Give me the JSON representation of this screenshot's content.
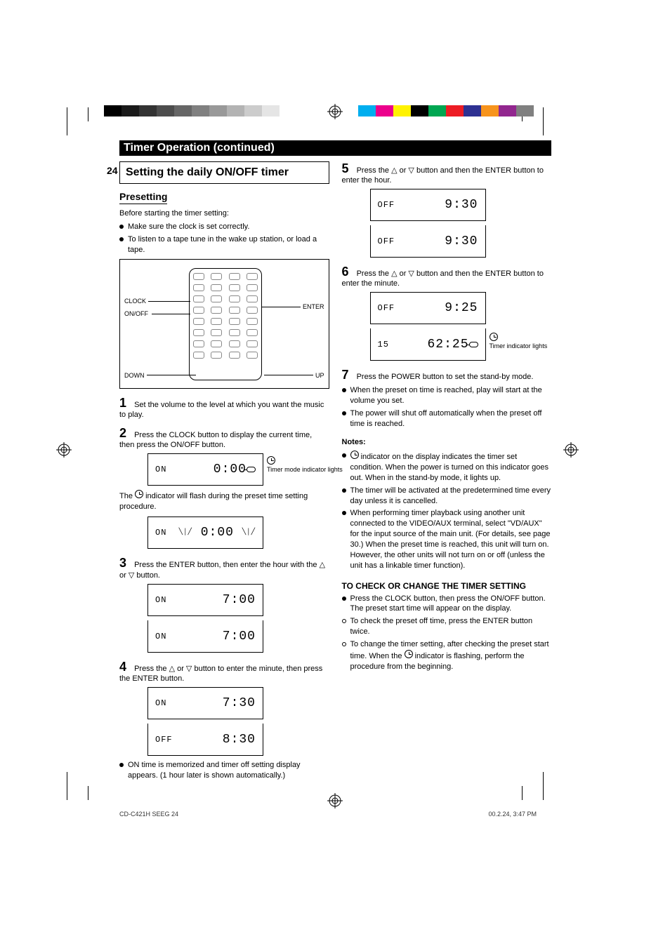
{
  "banner": "Timer Operation (continued)",
  "page_number": "24",
  "box_heading": "Setting the daily ON/OFF timer",
  "left": {
    "preset_head": "Presetting",
    "preset_p": "Before starting the timer setting:",
    "b1": "Make sure the clock is set correctly.",
    "b2": "To listen to a tape tune in the wake up station, or load a tape.",
    "fig_clock": "CLOCK",
    "fig_on": "ON/OFF",
    "fig_enter": "ENTER",
    "fig_dn": "DOWN",
    "fig_up": "UP",
    "s1": "Set the volume to the level at which you want the music to play.",
    "s2a": "Press the CLOCK button to display the current time, then press the ON/OFF button.",
    "lcd1_left": "ON",
    "lcd1_right": "0:00",
    "lcd1_note_a": "Timer mode indicator lights",
    "s2b_pfx": "The ",
    "s2b_icon_word": "clock",
    "s2b": " indicator will flash during the preset time setting procedure.",
    "lcd2_left": "ON",
    "lcd2_right": "0:00",
    "s3": "Press the ENTER button, then enter the hour with the △ or ▽ button.",
    "lcd3_left": "ON",
    "lcd3_right": "7:00",
    "lcd4_left": "ON",
    "lcd4_right": "7:00",
    "s4": "Press the △ or ▽ button to enter the minute, then press the ENTER button.",
    "lcd5_left": "ON",
    "lcd5_right": "7:30",
    "lcd6_left": "OFF",
    "lcd6_right": "8:30",
    "bnote": "ON time is memorized and timer off setting display appears. (1 hour later is shown automatically.)"
  },
  "right": {
    "s5": "Press the △ or ▽ button and then the ENTER button to enter the hour.",
    "lcd7_left": "OFF",
    "lcd7_right": "9:30",
    "lcd8_left": "OFF",
    "lcd8_right": "9:30",
    "s6": "Press the △ or ▽ button and then the ENTER button to enter the minute.",
    "lcd9_left": "OFF",
    "lcd9_right": "9:25",
    "lcd10_left": "15",
    "lcd10_right": "62:25",
    "lcd10_note": "Timer indicator lights",
    "s7": "Press the POWER button to set the stand-by mode.",
    "b7a": "When the preset on time is reached, play will start at the volume you set.",
    "b7b": "The power will shut off automatically when the preset off time is reached.",
    "notes_head": "Notes:",
    "n1_pre": "",
    "n1": " indicator on the display indicates the timer set condition. When the power is turned on this indicator goes out. When in the stand-by mode, it lights up.",
    "n2": "The timer will be activated at the predetermined time every day unless it is cancelled.",
    "n3": "When performing timer playback using another unit connected to the VIDEO/AUX terminal, select \"VD/AUX\" for the input source of the main unit. (For details, see page 30.) When the preset time is reached, this unit will turn on. However, the other units will not turn on or off (unless the unit has a linkable timer function).",
    "check_head": "TO CHECK OR CHANGE THE TIMER SETTING",
    "c1": "Press the CLOCK button, then press the ON/OFF button. The preset start time will appear on the display.",
    "c2": "To check the preset off time, press the ENTER button twice.",
    "c3_pre": "To change the timer setting, after checking the preset start time. When the ",
    "c3_post": " indicator is flashing, perform the procedure from the beginning."
  },
  "footer_file": "CD-C421H SEEG  24",
  "footer_time": "00.2.24, 3:47 PM",
  "colors": {
    "gray": [
      "#000000",
      "#1a1a1a",
      "#333333",
      "#4d4d4d",
      "#666666",
      "#808080",
      "#999999",
      "#b3b3b3",
      "#cccccc",
      "#e5e5e5"
    ],
    "cmyk": [
      "#00aeef",
      "#ec008c",
      "#fff200",
      "#000000",
      "#00a651",
      "#ed1c24",
      "#2e3192",
      "#f7941d",
      "#92278f",
      "#808080"
    ]
  }
}
